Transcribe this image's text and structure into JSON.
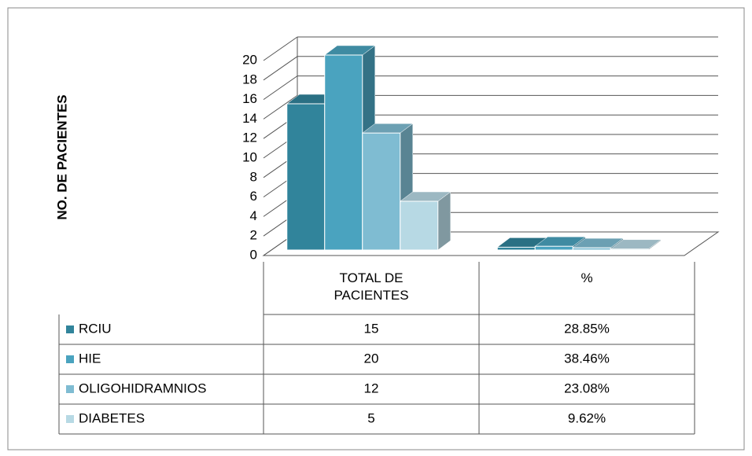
{
  "chart_data": {
    "type": "bar3d",
    "y_axis_label": "NO. DE PACIENTES",
    "categories": [
      "TOTAL DE PACIENTES",
      "%"
    ],
    "series": [
      {
        "name": "RCIU",
        "color": "#31849b",
        "values": [
          15,
          0.2885
        ],
        "value_labels": [
          "15",
          "28.85%"
        ]
      },
      {
        "name": "HIE",
        "color": "#4aa3bf",
        "values": [
          20,
          0.3846
        ],
        "value_labels": [
          "20",
          "38.46%"
        ]
      },
      {
        "name": "OLIGOHIDRAMNIOS",
        "color": "#7fbcd2",
        "values": [
          12,
          0.2308
        ],
        "value_labels": [
          "12",
          "23.08%"
        ]
      },
      {
        "name": "DIABETES",
        "color": "#b7d9e4",
        "values": [
          5,
          0.0962
        ],
        "value_labels": [
          "5",
          "9.62%"
        ]
      }
    ],
    "ylim": [
      0,
      20
    ],
    "yticks": [
      0,
      2,
      4,
      6,
      8,
      10,
      12,
      14,
      16,
      18,
      20
    ],
    "grid": true
  }
}
